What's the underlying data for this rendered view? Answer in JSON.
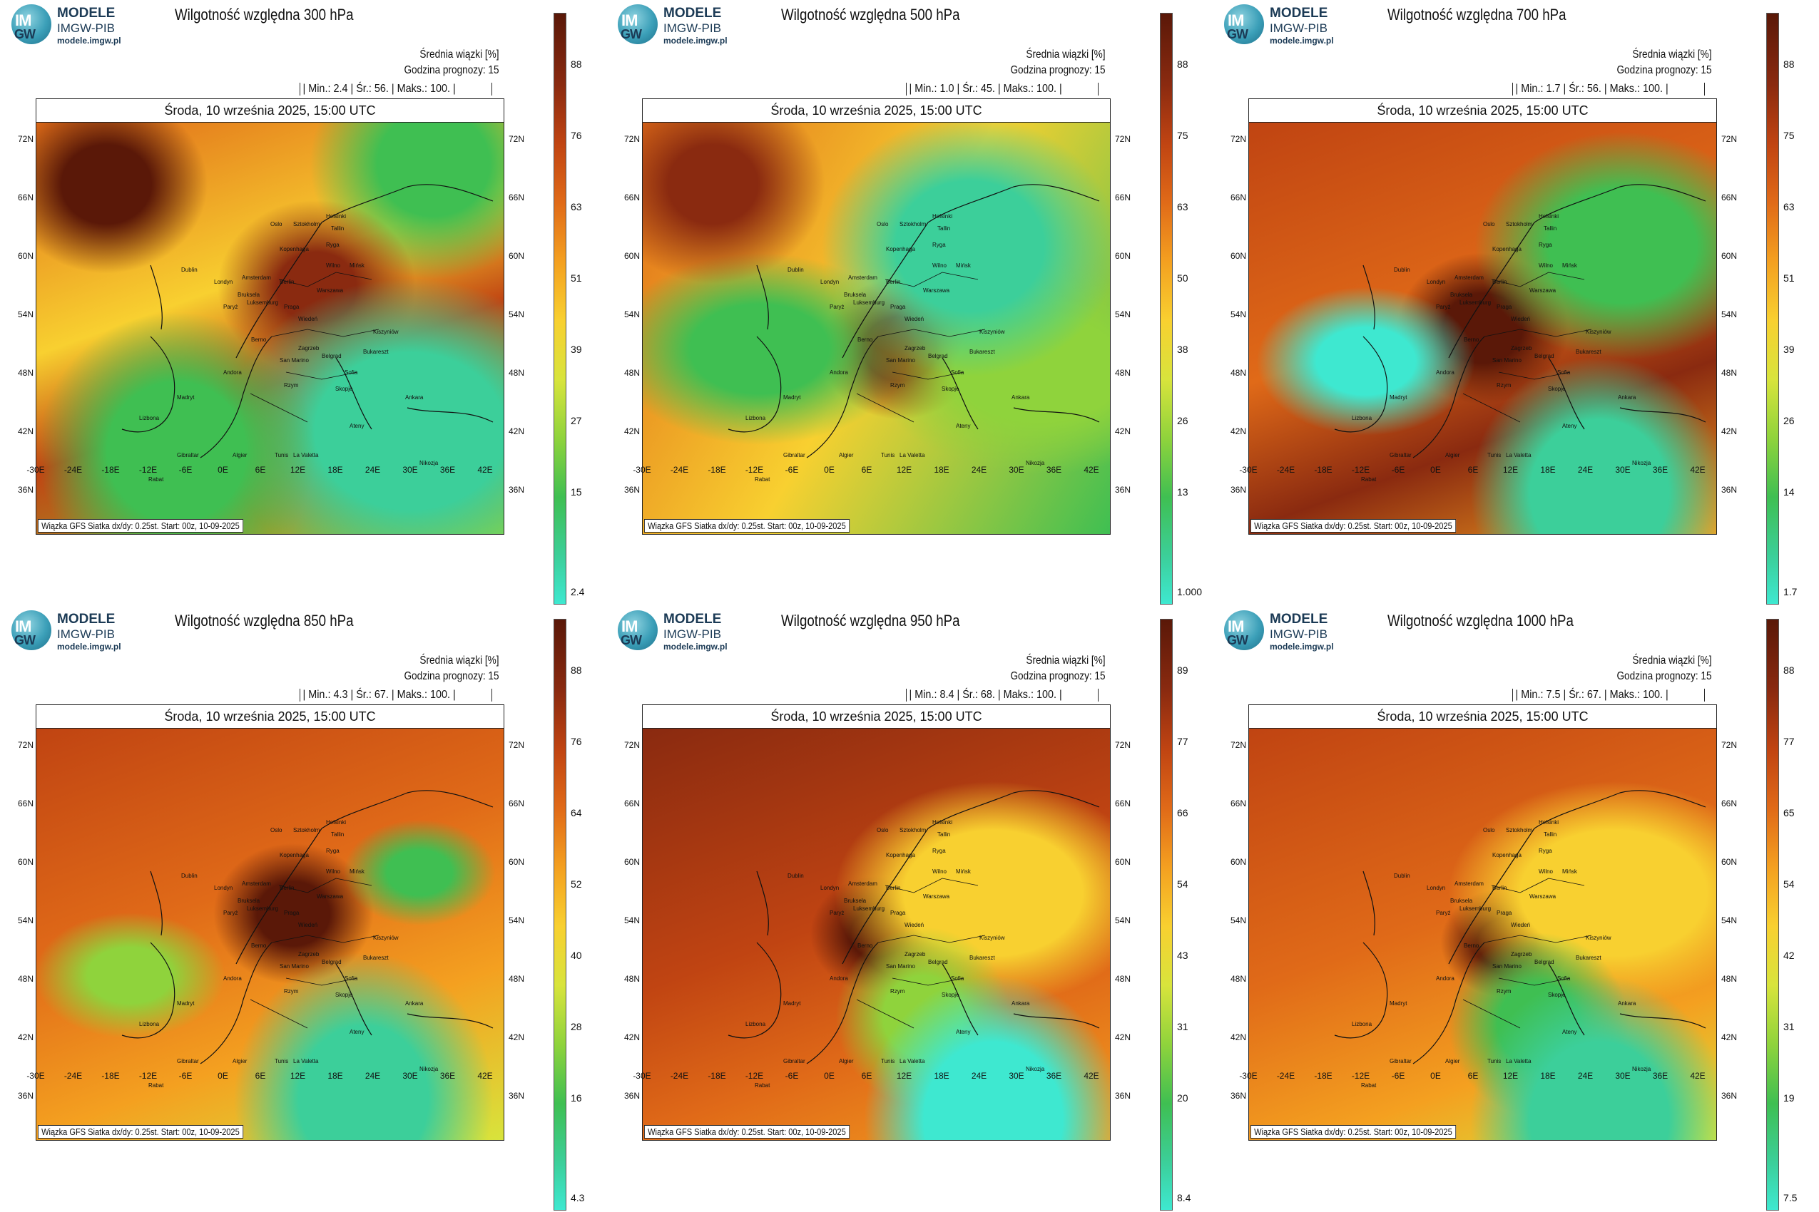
{
  "logo": {
    "line1": "MODELE",
    "line2": "IMGW-PIB",
    "line3": "modele.imgw.pl",
    "mark_top": "IM",
    "mark_bottom": "GW"
  },
  "common": {
    "units_label": "Średnia wiązki [%]",
    "forecast_hour": "Godzina prognozy: 15",
    "date": "Środa, 10 września 2025, 15:00 UTC",
    "footer": "Wiązka GFS Siatka dx/dy: 0.25st. Start: 00z, 10-09-2025",
    "lat_labels": [
      "72N",
      "66N",
      "60N",
      "54N",
      "48N",
      "42N",
      "36N"
    ],
    "lon_labels": [
      "-30E",
      "-24E",
      "-18E",
      "-12E",
      "-6E",
      "0E",
      "6E",
      "12E",
      "18E",
      "24E",
      "30E",
      "36E",
      "42E"
    ],
    "cities": [
      "Oslo",
      "Sztokholm",
      "Helsinki",
      "Tallin",
      "Ryga",
      "Wilno",
      "Mińsk",
      "Kopenhaga",
      "Amsterdam",
      "Berlin",
      "Warszawa",
      "Londyn",
      "Bruksela",
      "Luksemburg",
      "Paryż",
      "Praga",
      "Wiedeń",
      "Kiszyniów",
      "Berno",
      "Zagrzeb",
      "Belgrad",
      "Bukareszt",
      "Andora",
      "San Marino",
      "Sofia",
      "Skopje",
      "Madryt",
      "Lizbona",
      "Rzym",
      "Ateny",
      "Ankara",
      "Gibraltar",
      "Algier",
      "Tunis",
      "La Valetta",
      "Rabat",
      "Nikozja",
      "Dublin"
    ],
    "icon": "imgw-logo-icon"
  },
  "panels": [
    {
      "title": "Wilgotność względna 300 hPa",
      "stats": "| Min.:   2.4 | Śr.:   56. | Maks.:  100. |",
      "cbar": [
        "88",
        "76",
        "63",
        "51",
        "39",
        "27",
        "15",
        "2.4"
      ],
      "pattern": "upper"
    },
    {
      "title": "Wilgotność względna 500 hPa",
      "stats": "| Min.:   1.0 | Śr.:   45. | Maks.:  100. |",
      "cbar": [
        "88",
        "75",
        "63",
        "50",
        "38",
        "26",
        "13",
        "1.000"
      ],
      "pattern": "mid"
    },
    {
      "title": "Wilgotność względna 700 hPa",
      "stats": "| Min.:   1.7 | Śr.:   56. | Maks.:  100. |",
      "cbar": [
        "88",
        "75",
        "63",
        "51",
        "39",
        "26",
        "14",
        "1.7"
      ],
      "pattern": "low"
    },
    {
      "title": "Wilgotność względna 850 hPa",
      "stats": "| Min.:   4.3 | Śr.:   67. | Maks.:  100. |",
      "cbar": [
        "88",
        "76",
        "64",
        "52",
        "40",
        "28",
        "16",
        "4.3"
      ],
      "pattern": "surface1"
    },
    {
      "title": "Wilgotność względna 950 hPa",
      "stats": "| Min.:   8.4 | Śr.:   68. | Maks.:  100. |",
      "cbar": [
        "89",
        "77",
        "66",
        "54",
        "43",
        "31",
        "20",
        "8.4"
      ],
      "pattern": "surface2"
    },
    {
      "title": "Wilgotność względna 1000 hPa",
      "stats": "| Min.:   7.5 | Śr.:   67. | Maks.:  100. |",
      "cbar": [
        "88",
        "77",
        "65",
        "54",
        "42",
        "31",
        "19",
        "7.5"
      ],
      "pattern": "surface3"
    }
  ]
}
